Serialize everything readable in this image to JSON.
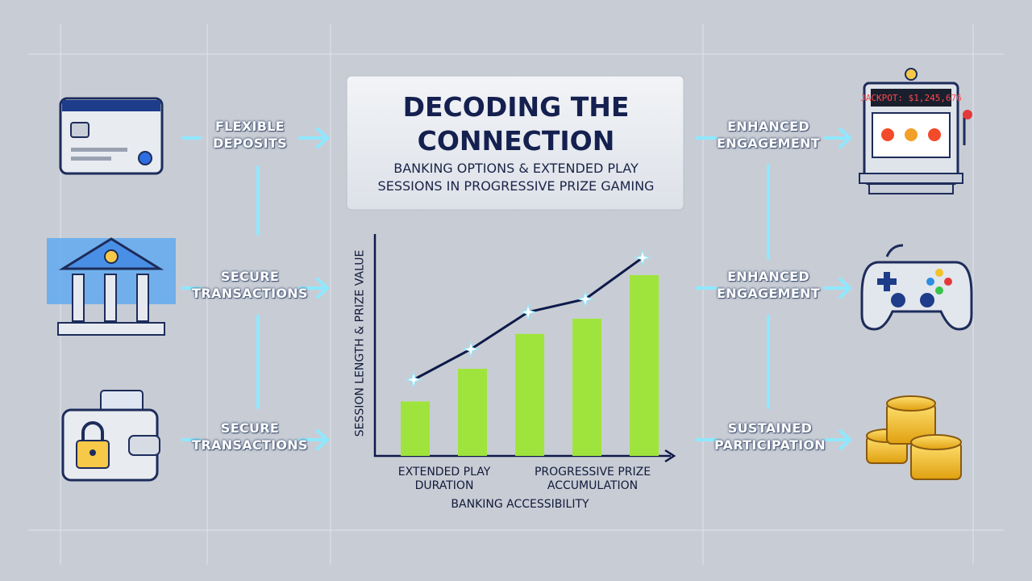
{
  "title": "DECODING THE CONNECTION",
  "subtitle": "BANKING OPTIONS & EXTENDED PLAY SESSIONS IN PROGRESSIVE PRIZE GAMING",
  "left_labels": [
    "FLEXIBLE DEPOSITS",
    "SECURE TRANSACTIONS",
    "SECURE TRANSACTIONS"
  ],
  "right_labels": [
    "ENHANCED ENGAGEMENT",
    "ENHANCED ENGAGEMENT",
    "SUSTAINED PARTICIPATION"
  ],
  "slot_display": "JACKPOT: $1,245,676",
  "chart_data": {
    "type": "bar",
    "y_label": "SESSION LENGTH & PRIZE VALUE",
    "x_label": "BANKING ACCESSIBILITY",
    "group_labels": [
      "EXTENDED PLAY DURATION",
      "PROGRESSIVE PRIZE ACCUMULATION"
    ],
    "values": [
      25,
      40,
      56,
      63,
      83
    ],
    "line_values": [
      35,
      49,
      66,
      72,
      91
    ],
    "color": "#9fe43c",
    "line_color": "#0e1a4a",
    "ylim": [
      0,
      100
    ]
  }
}
